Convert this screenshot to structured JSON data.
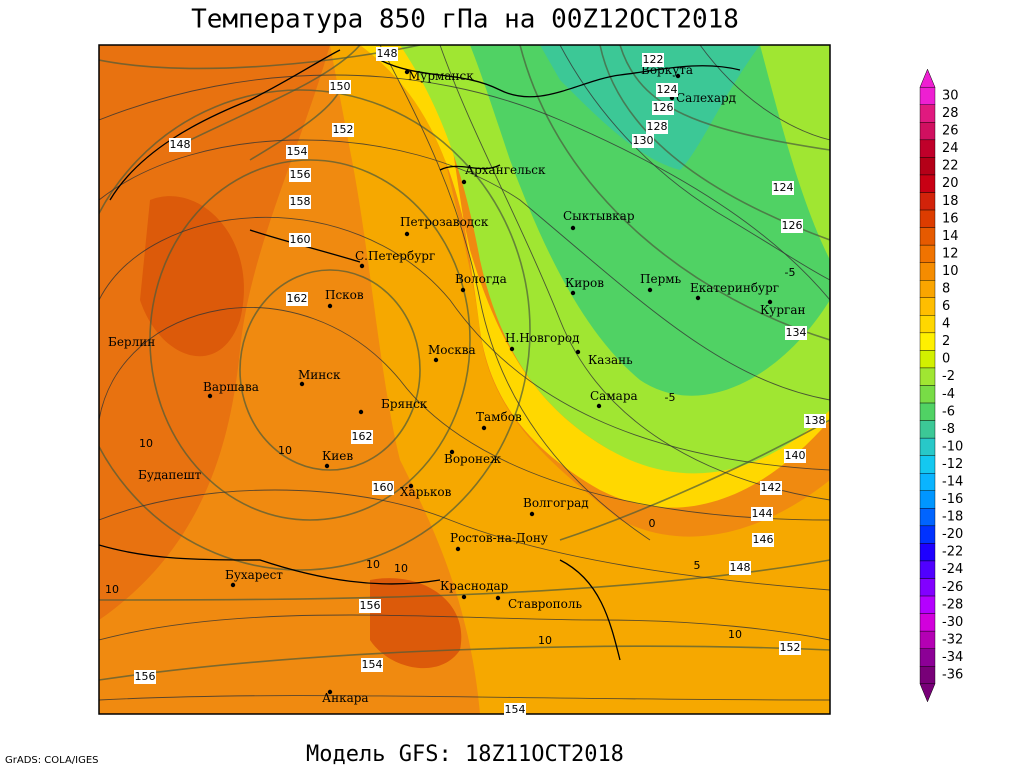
{
  "title": "Температура 850 гПа на 00Z12OCT2018",
  "footer": "Модель GFS: 18Z11OCT2018",
  "credit": "GrADS: COLA/IGES",
  "cities": [
    "Мурманск",
    "Воркута",
    "Салехард",
    "Архангельск",
    "Петрозаводск",
    "Сыктывкар",
    "С.Петербург",
    "Вологда",
    "Киров",
    "Пермь",
    "Екатеринбург",
    "Курган",
    "Псков",
    "Берлин",
    "Н.Новгород",
    "Москва",
    "Казань",
    "Варшава",
    "Минск",
    "Брянск",
    "Самара",
    "Тамбов",
    "Киев",
    "Воронеж",
    "Будапешт",
    "Харьков",
    "Волгоград",
    "Ростов-на-Дону",
    "Бухарест",
    "Краснодар",
    "Ставрополь",
    "Анкара"
  ],
  "contour_labels": [
    148,
    122,
    124,
    126,
    128,
    130,
    150,
    152,
    154,
    156,
    158,
    160,
    162,
    148,
    124,
    126,
    134,
    138,
    140,
    142,
    144,
    146,
    148,
    162,
    160,
    156,
    154,
    152,
    156,
    154
  ],
  "temperature_labels": [
    10,
    10,
    10,
    10,
    -5,
    -5,
    0,
    5,
    10,
    10,
    10
  ],
  "colorbar": {
    "ticks": [
      30,
      28,
      26,
      24,
      22,
      20,
      18,
      16,
      14,
      12,
      10,
      8,
      6,
      4,
      2,
      0,
      -2,
      -4,
      -6,
      -8,
      -10,
      -12,
      -14,
      -16,
      -18,
      -20,
      -22,
      -24,
      -26,
      -28,
      -30,
      -32,
      -34,
      -36
    ],
    "colors": [
      "#ee1fd2",
      "#e0197f",
      "#d01060",
      "#c0002a",
      "#b40018",
      "#c80014",
      "#d2230a",
      "#dc3c00",
      "#e65a00",
      "#f07300",
      "#f58c00",
      "#faa500",
      "#ffbe00",
      "#ffd700",
      "#fff000",
      "#d2f000",
      "#a0e632",
      "#78dc46",
      "#50d264",
      "#3cc896",
      "#28c8c8",
      "#14c8f0",
      "#0ab4ff",
      "#0096ff",
      "#0064ff",
      "#0032ff",
      "#1e00ff",
      "#5000ff",
      "#8200ff",
      "#b400ff",
      "#d200dc",
      "#b400b4",
      "#8c0096",
      "#780078"
    ]
  }
}
